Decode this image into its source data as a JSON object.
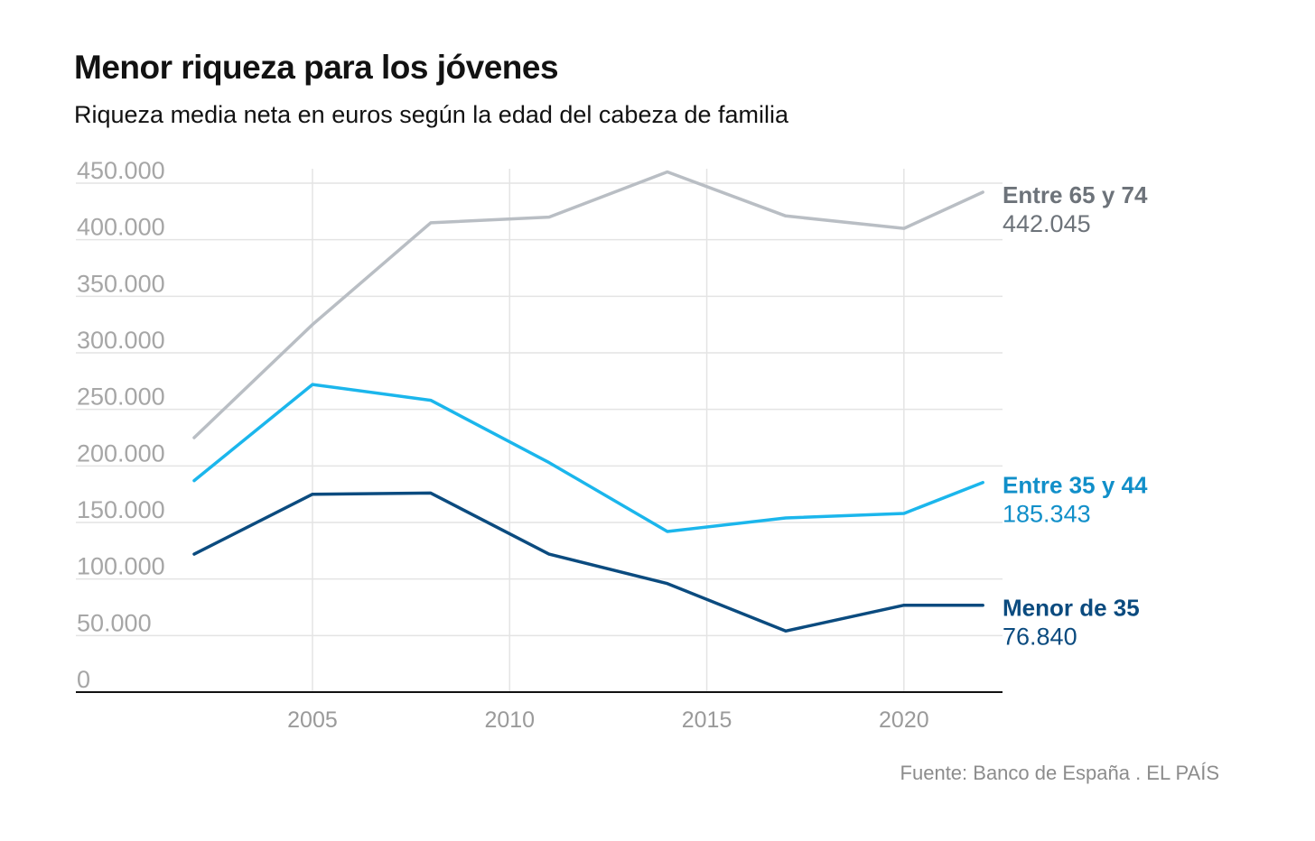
{
  "title": "Menor riqueza para los jóvenes",
  "subtitle": "Riqueza media neta en euros según la edad del cabeza de familia",
  "source": "Fuente: Banco de España . EL PAÍS",
  "chart_data": {
    "type": "line",
    "title": "Menor riqueza para los jóvenes",
    "subtitle": "Riqueza media neta en euros según la edad del cabeza de familia",
    "xlabel": "",
    "ylabel": "",
    "x": [
      2002,
      2005,
      2008,
      2011,
      2014,
      2017,
      2020,
      2022
    ],
    "xlim": [
      1999,
      2022.5
    ],
    "ylim": [
      0,
      450000
    ],
    "x_ticks": [
      2005,
      2010,
      2015,
      2020
    ],
    "x_tick_labels": [
      "2005",
      "2010",
      "2015",
      "2020"
    ],
    "y_ticks": [
      0,
      50000,
      100000,
      150000,
      200000,
      250000,
      300000,
      350000,
      400000,
      450000
    ],
    "y_tick_labels": [
      "0",
      "50.000",
      "100.000",
      "150.000",
      "200.000",
      "250.000",
      "300.000",
      "350.000",
      "400.000",
      "450.000"
    ],
    "grid": true,
    "legend": "end-of-line labels",
    "series": [
      {
        "name": "Entre 65 y 74",
        "last_label": "442.045",
        "color": "#b9bec4",
        "label_color": "#6d737a",
        "values": [
          225000,
          325000,
          415000,
          420000,
          460000,
          421000,
          410000,
          442045
        ]
      },
      {
        "name": "Entre 35 y 44",
        "last_label": "185.343",
        "color": "#1bb6ec",
        "label_color": "#118fc9",
        "values": [
          187000,
          272000,
          258000,
          203000,
          142000,
          154000,
          158000,
          185343
        ]
      },
      {
        "name": "Menor de 35",
        "last_label": "76.840",
        "color": "#0b4b7f",
        "label_color": "#0b4b7f",
        "values": [
          122000,
          175000,
          176000,
          122000,
          96000,
          54000,
          76840,
          76840
        ]
      }
    ]
  }
}
